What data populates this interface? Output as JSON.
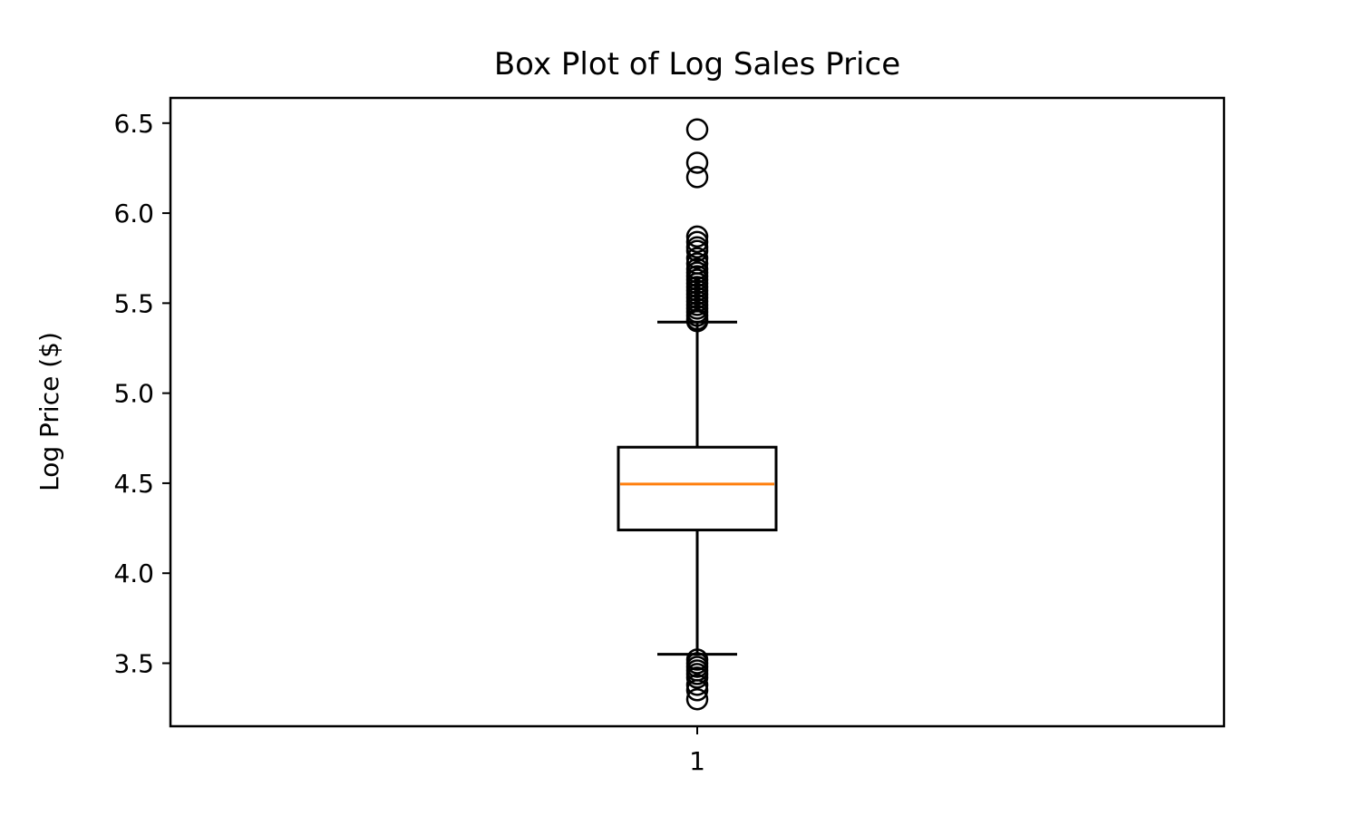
{
  "chart_data": {
    "type": "box",
    "title": "Box Plot of Log Sales Price",
    "xlabel": "",
    "ylabel": "Log Price ($)",
    "ylim": [
      3.15,
      6.64
    ],
    "yticks": [
      "3.5",
      "4.0",
      "4.5",
      "5.0",
      "5.5",
      "6.0",
      "6.5"
    ],
    "categories": [
      "1"
    ],
    "grid": false,
    "boxes": [
      {
        "category": "1",
        "q1": 4.24,
        "median": 4.495,
        "q3": 4.7,
        "whisker_low": 3.55,
        "whisker_high": 5.395,
        "outliers": [
          6.465,
          6.28,
          6.2,
          5.87,
          5.84,
          5.81,
          5.79,
          5.75,
          5.72,
          5.69,
          5.67,
          5.65,
          5.63,
          5.61,
          5.59,
          5.57,
          5.55,
          5.53,
          5.51,
          5.49,
          5.47,
          5.45,
          5.43,
          5.41,
          5.4,
          3.52,
          3.5,
          3.48,
          3.46,
          3.44,
          3.42,
          3.38,
          3.35,
          3.3
        ]
      }
    ],
    "colors": {
      "box": "#000000",
      "median": "#ff7f0e",
      "flier": "#000000"
    }
  }
}
